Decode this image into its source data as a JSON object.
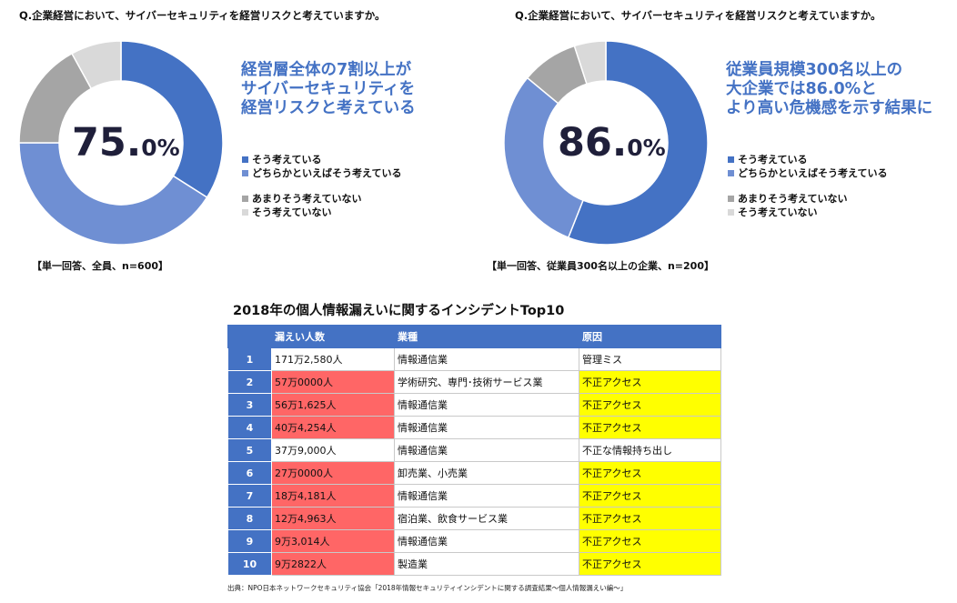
{
  "charts": [
    {
      "question": "Q.企業経営において、サイバーセキュリティを経営リスクと考えていますか。",
      "big_number": "75.",
      "big_decimal": "0%",
      "callout": [
        "経営層全体の7割以上が",
        "サイバーセキュリティを",
        "経営リスクと考えている"
      ],
      "note": "【単一回答、全員、n=600】"
    },
    {
      "question": "Q.企業経営において、サイバーセキュリティを経営リスクと考えていますか。",
      "big_number": "86.",
      "big_decimal": "0%",
      "callout": [
        "従業員規模300名以上の",
        "大企業では86.0%と",
        "より高い危機感を示す結果に"
      ],
      "note": "【単一回答、従業員300名以上の企業、n=200】"
    }
  ],
  "legend": [
    "そう考えている",
    "どちらかといえばそう考えている",
    "あまりそう考えていない",
    "そう考えていない"
  ],
  "colors": {
    "strong_yes": "#4472c4",
    "somewhat_yes": "#6f8fd3",
    "somewhat_no": "#a5a5a5",
    "no": "#d9d9d9",
    "header": "#4472c4",
    "red_cell": "#ff6666",
    "yellow_cell": "#ffff00"
  },
  "table": {
    "title": "2018年の個人情報漏えいに関するインシデントTop10",
    "headers": [
      "",
      "漏えい人数",
      "業種",
      "原因"
    ],
    "rows": [
      {
        "rank": "1",
        "count": "171万2,580人",
        "industry": "情報通信業",
        "cause": "管理ミス",
        "hl_count": false,
        "hl_cause": false
      },
      {
        "rank": "2",
        "count": "57万0000人",
        "industry": "学術研究、専門･技術サービス業",
        "cause": "不正アクセス",
        "hl_count": true,
        "hl_cause": true
      },
      {
        "rank": "3",
        "count": "56万1,625人",
        "industry": "情報通信業",
        "cause": "不正アクセス",
        "hl_count": true,
        "hl_cause": true
      },
      {
        "rank": "4",
        "count": "40万4,254人",
        "industry": "情報通信業",
        "cause": "不正アクセス",
        "hl_count": true,
        "hl_cause": true
      },
      {
        "rank": "5",
        "count": "37万9,000人",
        "industry": "情報通信業",
        "cause": "不正な情報持ち出し",
        "hl_count": false,
        "hl_cause": false
      },
      {
        "rank": "6",
        "count": "27万0000人",
        "industry": "卸売業、小売業",
        "cause": "不正アクセス",
        "hl_count": true,
        "hl_cause": true
      },
      {
        "rank": "7",
        "count": "18万4,181人",
        "industry": "情報通信業",
        "cause": "不正アクセス",
        "hl_count": true,
        "hl_cause": true
      },
      {
        "rank": "8",
        "count": "12万4,963人",
        "industry": "宿泊業、飲食サービス業",
        "cause": "不正アクセス",
        "hl_count": true,
        "hl_cause": true
      },
      {
        "rank": "9",
        "count": "9万3,014人",
        "industry": "情報通信業",
        "cause": "不正アクセス",
        "hl_count": true,
        "hl_cause": true
      },
      {
        "rank": "10",
        "count": "9万2822人",
        "industry": "製造業",
        "cause": "不正アクセス",
        "hl_count": true,
        "hl_cause": true
      }
    ]
  },
  "source": "出典：NPO日本ネットワークセキュリティ協会「2018年情報セキュリティインシデントに関する調査結果～個人情報漏えい編～」",
  "chart_data": [
    {
      "type": "pie",
      "categories": [
        "そう考えている",
        "どちらかといえばそう考えている",
        "あまりそう考えていない",
        "そう考えていない"
      ],
      "values": [
        34,
        41,
        17,
        8
      ]
    },
    {
      "type": "pie",
      "categories": [
        "そう考えている",
        "どちらかといえばそう考えている",
        "あまりそう考えていない",
        "そう考えていない"
      ],
      "values": [
        56,
        30,
        9,
        5
      ]
    }
  ]
}
